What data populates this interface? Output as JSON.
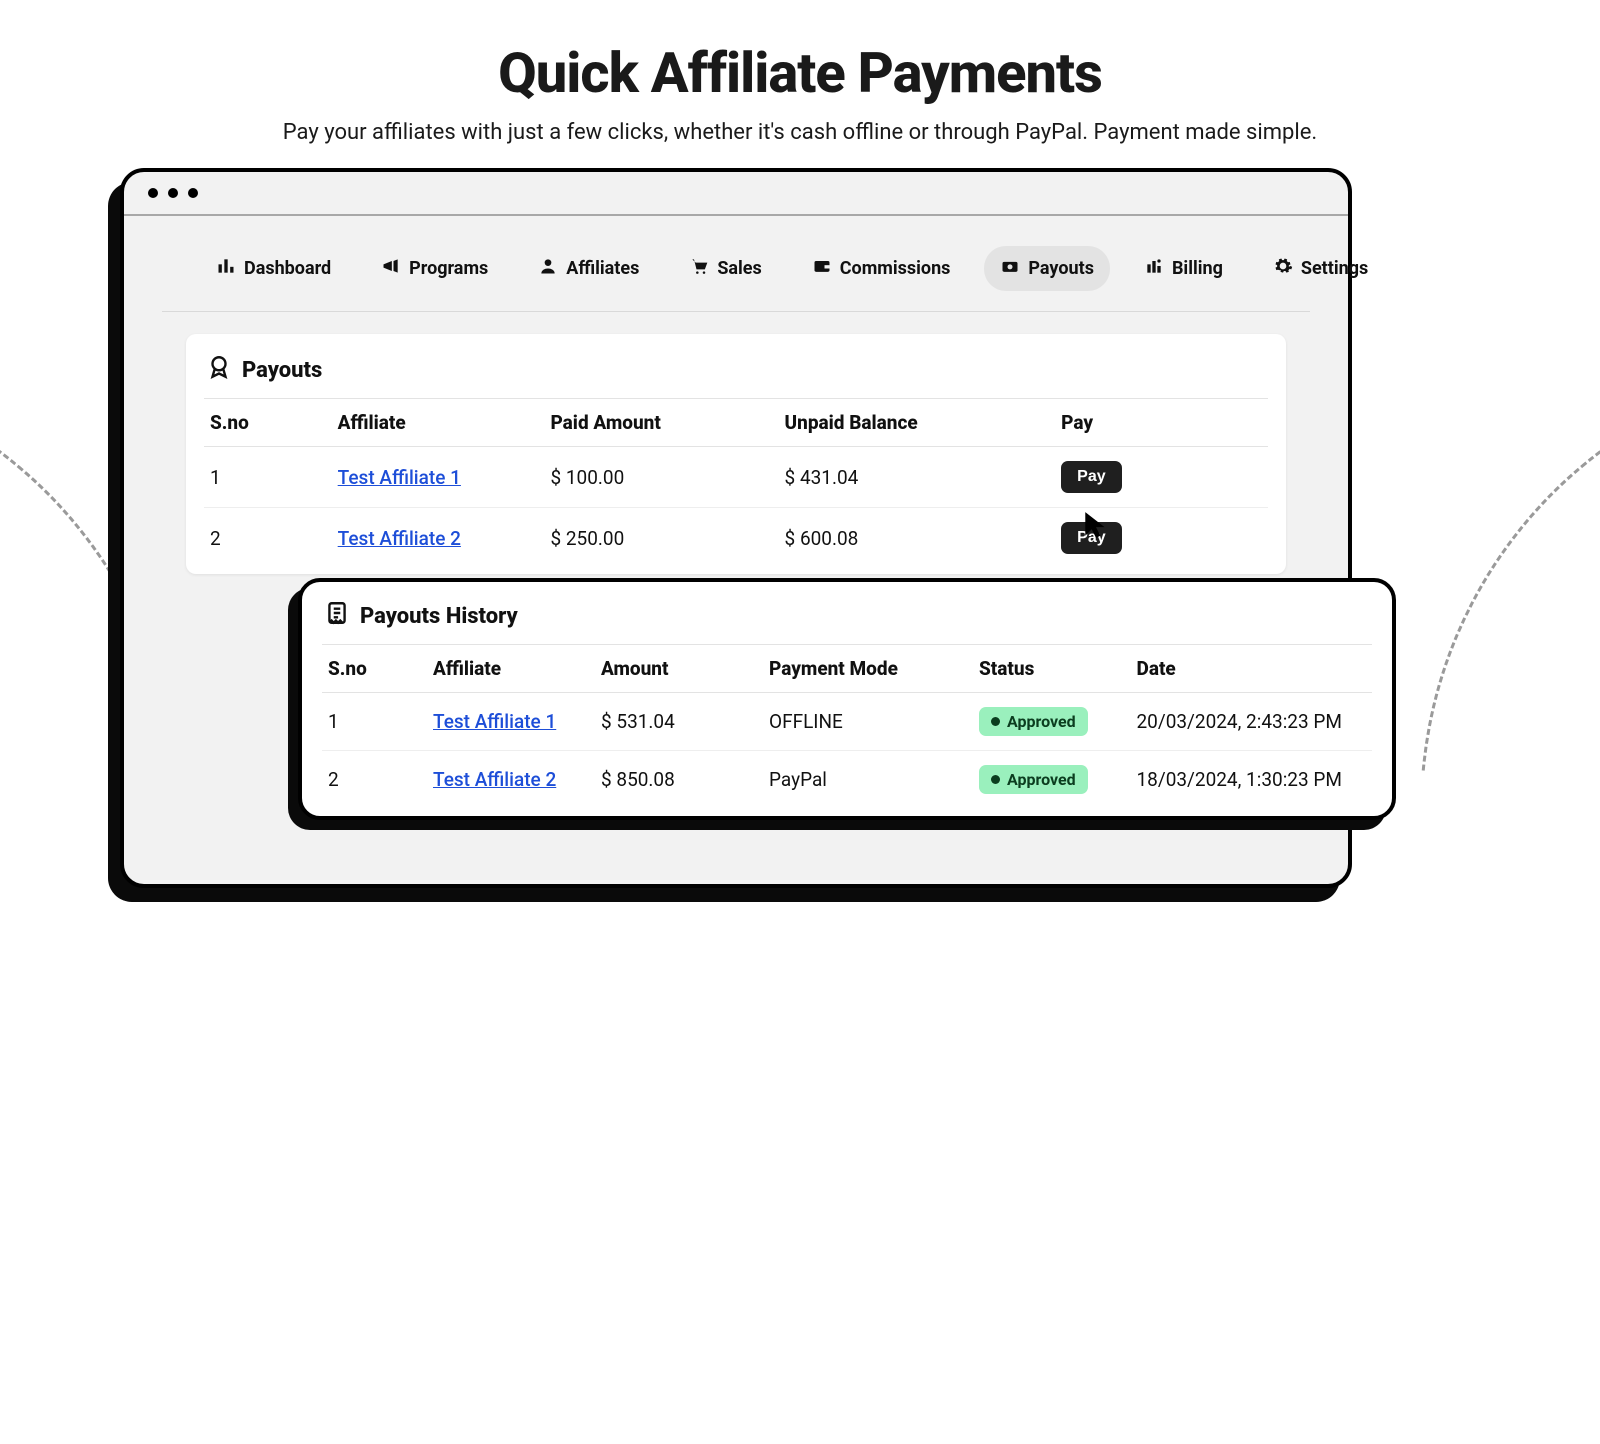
{
  "hero": {
    "title": "Quick Affiliate Payments",
    "subtitle": "Pay your affiliates with just a few clicks, whether it's cash offline or through PayPal. Payment made simple."
  },
  "nav": {
    "items": [
      {
        "label": "Dashboard",
        "icon": "bar-chart-icon"
      },
      {
        "label": "Programs",
        "icon": "megaphone-icon"
      },
      {
        "label": "Affiliates",
        "icon": "user-icon"
      },
      {
        "label": "Sales",
        "icon": "cart-icon"
      },
      {
        "label": "Commissions",
        "icon": "wallet-icon"
      },
      {
        "label": "Payouts",
        "icon": "payouts-icon",
        "active": true
      },
      {
        "label": "Billing",
        "icon": "billing-icon"
      },
      {
        "label": "Settings",
        "icon": "gear-icon"
      }
    ]
  },
  "payouts_panel": {
    "title": "Payouts",
    "columns": [
      "S.no",
      "Affiliate",
      "Paid Amount",
      "Unpaid Balance",
      "Pay"
    ],
    "col_widths": [
      "12%",
      "20%",
      "22%",
      "26%",
      "20%"
    ],
    "pay_button_label": "Pay",
    "rows": [
      {
        "sno": "1",
        "affiliate": "Test Affiliate 1",
        "paid": "$ 100.00",
        "unpaid": "$ 431.04"
      },
      {
        "sno": "2",
        "affiliate": "Test Affiliate 2",
        "paid": "$ 250.00",
        "unpaid": "$ 600.08"
      }
    ]
  },
  "history_panel": {
    "title": "Payouts History",
    "columns": [
      "S.no",
      "Affiliate",
      "Amount",
      "Payment Mode",
      "Status",
      "Date"
    ],
    "col_widths": [
      "10%",
      "16%",
      "16%",
      "20%",
      "15%",
      "23%"
    ],
    "rows": [
      {
        "sno": "1",
        "affiliate": "Test Affiliate 1",
        "amount": "$ 531.04",
        "mode": "OFFLINE",
        "status": "Approved",
        "date": "20/03/2024, 2:43:23 PM"
      },
      {
        "sno": "2",
        "affiliate": "Test Affiliate 2",
        "amount": "$ 850.08",
        "mode": "PayPal",
        "status": "Approved",
        "date": "18/03/2024, 1:30:23 PM"
      }
    ]
  },
  "colors": {
    "text": "#1a1a1a",
    "link": "#1d4ed8",
    "pay_button_bg": "#1f1f1f",
    "status_badge_bg": "#9af0bd",
    "status_badge_text": "#0b3d1f",
    "nav_active_bg": "#e3e3e3",
    "window_bg": "#f2f2f2",
    "border": "#000000"
  }
}
